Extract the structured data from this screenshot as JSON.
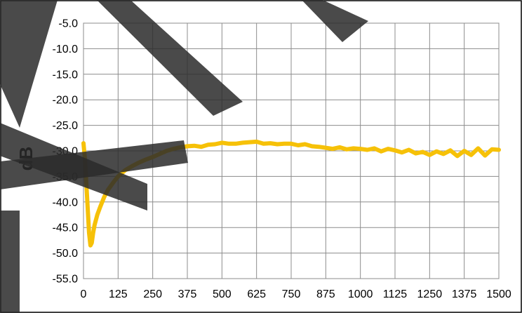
{
  "chart_data": {
    "type": "line",
    "title": "",
    "xlabel": "",
    "ylabel": "dB",
    "xlim": [
      0,
      1500
    ],
    "ylim": [
      -55,
      -5
    ],
    "x_ticks": [
      0,
      125,
      250,
      375,
      500,
      625,
      750,
      875,
      1000,
      1125,
      1250,
      1375,
      1500
    ],
    "y_ticks": [
      -5,
      -10,
      -15,
      -20,
      -25,
      -30,
      -35,
      -40,
      -45,
      -50,
      -55
    ],
    "y_tick_labels": [
      "-5.0",
      "-10.0",
      "-15.0",
      "-20.0",
      "-25.0",
      "-30.0",
      "-35.0",
      "-40.0",
      "-45.0",
      "-50.0",
      "-55.0"
    ],
    "x_tick_labels": [
      "0",
      "125",
      "250",
      "375",
      "500",
      "625",
      "750",
      "875",
      "1000",
      "1125",
      "1250",
      "1375",
      "1500"
    ],
    "grid": true,
    "legend": "none",
    "series": [
      {
        "color": "#f6c108",
        "x": [
          0,
          5,
          10,
          15,
          20,
          25,
          30,
          35,
          40,
          50,
          60,
          75,
          90,
          110,
          125,
          150,
          175,
          200,
          225,
          250,
          275,
          300,
          325,
          350,
          375,
          400,
          425,
          450,
          475,
          500,
          525,
          550,
          575,
          600,
          625,
          650,
          675,
          700,
          725,
          750,
          775,
          800,
          825,
          850,
          875,
          900,
          925,
          950,
          975,
          1000,
          1025,
          1050,
          1075,
          1100,
          1125,
          1150,
          1175,
          1200,
          1225,
          1250,
          1275,
          1300,
          1325,
          1350,
          1375,
          1400,
          1425,
          1450,
          1475,
          1500
        ],
        "y": [
          -28.5,
          -31.5,
          -36.0,
          -41.0,
          -46.0,
          -48.5,
          -48.0,
          -46.0,
          -44.5,
          -42.5,
          -41.0,
          -39.0,
          -37.5,
          -36.0,
          -35.0,
          -33.8,
          -33.0,
          -32.3,
          -31.7,
          -31.2,
          -30.6,
          -30.0,
          -29.6,
          -29.3,
          -29.1,
          -29.0,
          -29.2,
          -28.8,
          -28.7,
          -28.4,
          -28.6,
          -28.6,
          -28.4,
          -28.3,
          -28.2,
          -28.6,
          -28.5,
          -28.7,
          -28.6,
          -28.6,
          -28.9,
          -28.7,
          -29.1,
          -29.2,
          -29.4,
          -29.6,
          -29.3,
          -29.7,
          -29.5,
          -29.6,
          -29.8,
          -29.5,
          -30.1,
          -29.6,
          -29.9,
          -30.3,
          -29.8,
          -30.5,
          -30.2,
          -30.8,
          -30.1,
          -30.6,
          -29.9,
          -31.0,
          -30.0,
          -30.8,
          -29.5,
          -30.9,
          -29.7,
          -29.8
        ]
      }
    ]
  }
}
